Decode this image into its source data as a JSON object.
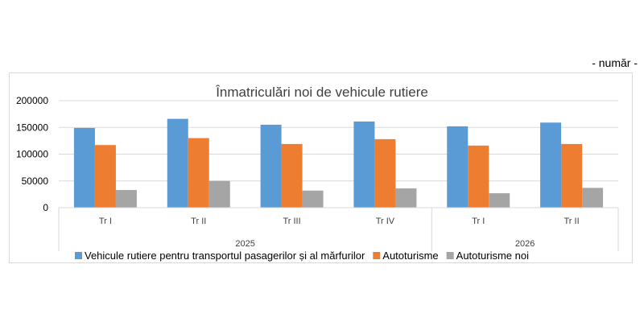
{
  "unit_note": "- număr -",
  "chart_data": {
    "type": "bar",
    "title": "Înmatriculări noi de vehicule rutiere",
    "xlabel": "",
    "ylabel": "",
    "ylim": [
      0,
      200000
    ],
    "yticks": [
      "200000",
      "150000",
      "100000",
      "50000",
      "0"
    ],
    "ytick_values": [
      200000,
      150000,
      100000,
      50000,
      0
    ],
    "categories": [
      "Tr I",
      "Tr II",
      "Tr III",
      "Tr IV",
      "Tr I",
      "Tr II"
    ],
    "groups": [
      {
        "label": "2025",
        "span": [
          0,
          3
        ]
      },
      {
        "label": "2026",
        "span": [
          4,
          5
        ]
      }
    ],
    "grid": true,
    "legend_position": "bottom",
    "series": [
      {
        "name": "Vehicule rutiere pentru transportul pasagerilor și al mărfurilor",
        "color": "#5b9bd5",
        "values": [
          149000,
          166000,
          155000,
          161000,
          152000,
          159000
        ]
      },
      {
        "name": "Autoturisme",
        "color": "#ed7d31",
        "values": [
          117000,
          130000,
          119000,
          128000,
          116000,
          119000
        ]
      },
      {
        "name": "Autoturisme noi",
        "color": "#a5a5a5",
        "values": [
          33000,
          50000,
          32000,
          36000,
          27000,
          37000
        ]
      }
    ]
  }
}
